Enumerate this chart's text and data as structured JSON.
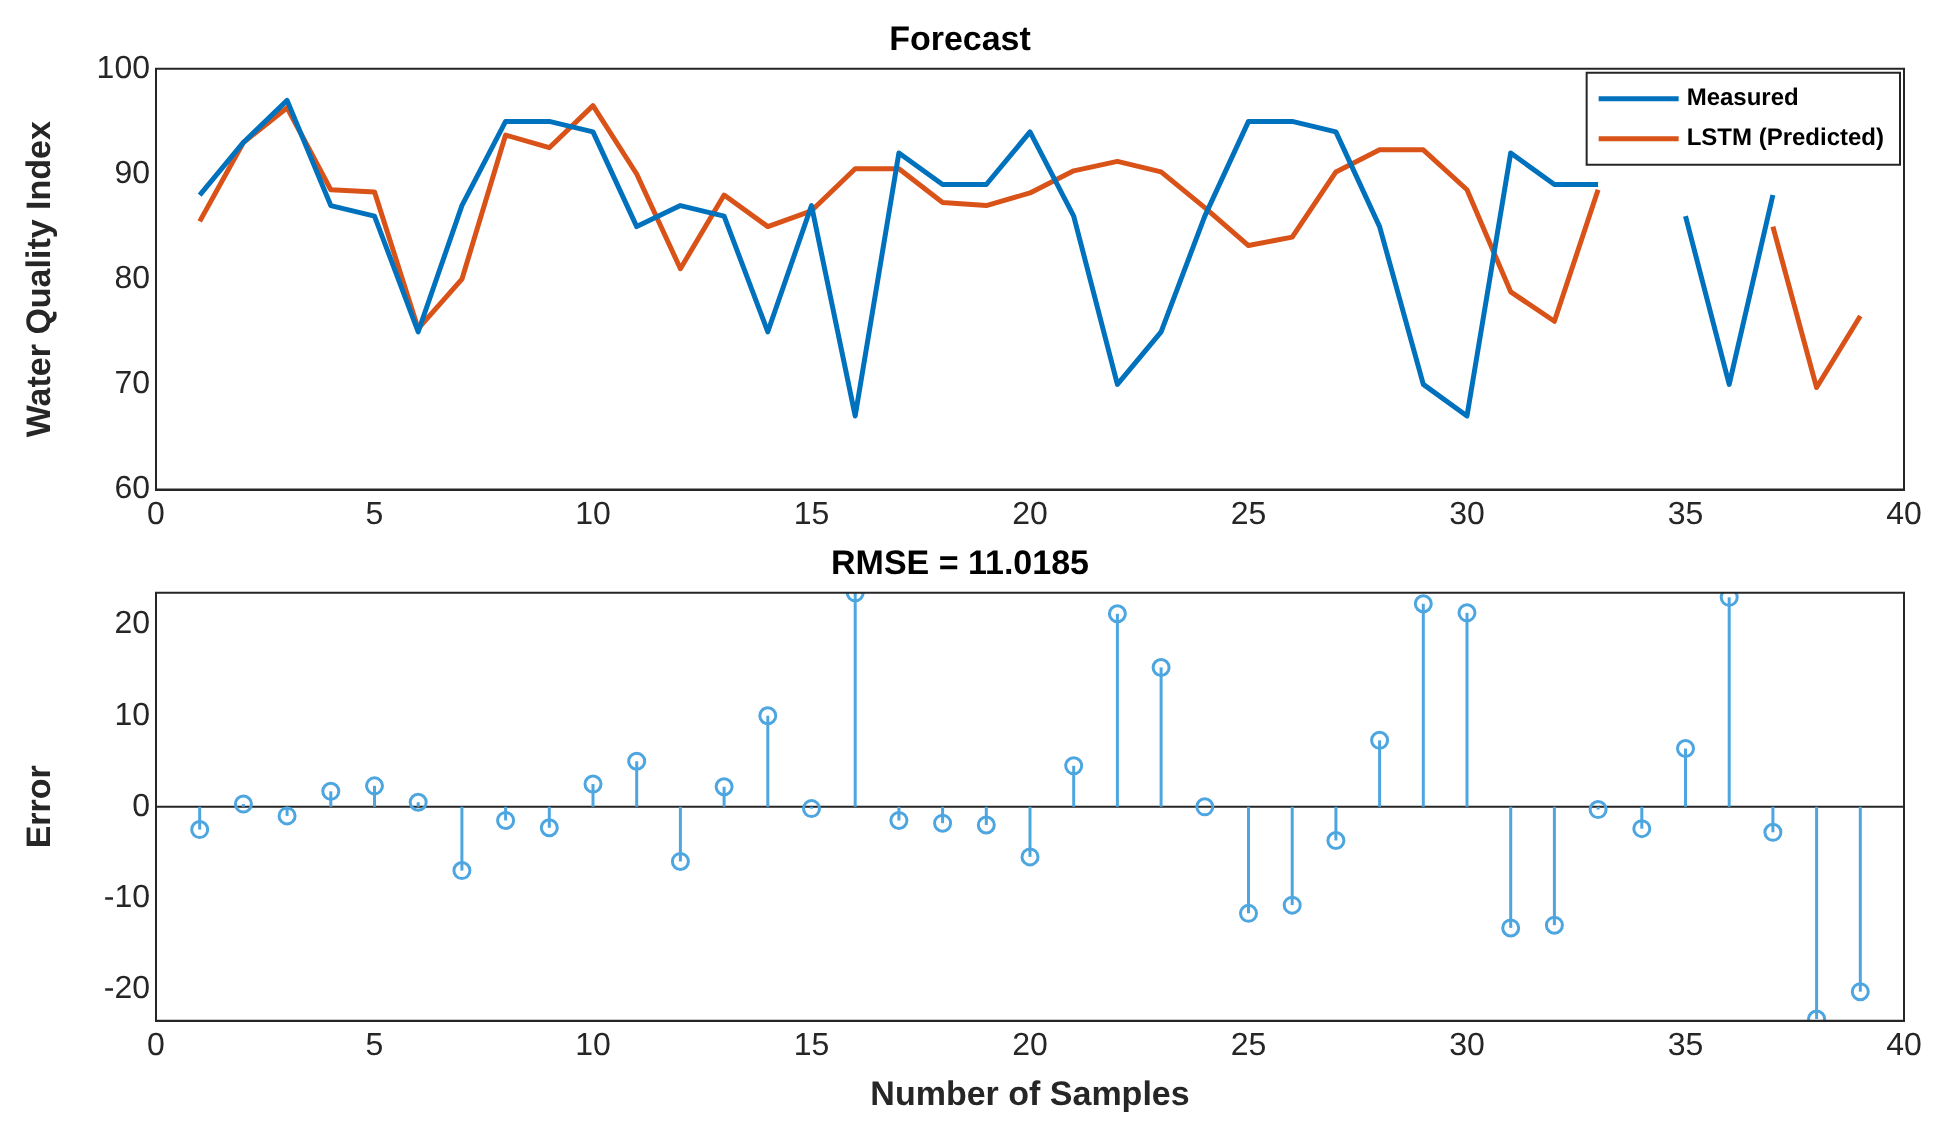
{
  "chart_data": [
    {
      "type": "line",
      "title": "Forecast",
      "ylabel": "Water Quality Index",
      "x": [
        1,
        2,
        3,
        4,
        5,
        6,
        7,
        8,
        9,
        10,
        11,
        12,
        13,
        14,
        15,
        16,
        17,
        18,
        19,
        20,
        21,
        22,
        23,
        24,
        25,
        26,
        27,
        28,
        29,
        30,
        31,
        32,
        33,
        34,
        35,
        36,
        37,
        38,
        39
      ],
      "series": [
        {
          "name": "Measured",
          "color": "#0072bd",
          "values": [
            88,
            93,
            97,
            87,
            86,
            75,
            87,
            95,
            95,
            94,
            85,
            87,
            86,
            75,
            87,
            67,
            92,
            89,
            89,
            94,
            86,
            70,
            75,
            86,
            95,
            95,
            94,
            85,
            70,
            67,
            92,
            89,
            89,
            null,
            86,
            70,
            88,
            null,
            null
          ]
        },
        {
          "name": "LSTM (Predicted)",
          "color": "#d95319",
          "values": [
            85.5,
            93,
            96.3,
            88.5,
            88.3,
            75.3,
            80,
            93.7,
            92.5,
            96.5,
            90,
            81,
            88,
            85,
            86.5,
            90.5,
            90.5,
            87.3,
            87,
            88.2,
            90.3,
            91.2,
            90.2,
            86.8,
            83.2,
            84,
            90.2,
            92.3,
            92.3,
            88.5,
            78.8,
            76,
            88.5,
            null,
            null,
            null,
            85,
            69.7,
            76.5
          ]
        }
      ],
      "xlim": [
        0,
        40
      ],
      "xticks": [
        0,
        5,
        10,
        15,
        20,
        25,
        30,
        35,
        40
      ],
      "ylim": [
        60,
        100
      ],
      "yticks": [
        60,
        70,
        80,
        90,
        100
      ],
      "grid": false,
      "legend": "top right",
      "marker": "none",
      "line_style": "solid"
    },
    {
      "type": "lollipop",
      "title": "RMSE = 11.0185",
      "xlabel": "Number of Samples",
      "ylabel": "Error",
      "x": [
        1,
        2,
        3,
        4,
        5,
        6,
        7,
        8,
        9,
        10,
        11,
        12,
        13,
        14,
        15,
        16,
        17,
        18,
        19,
        20,
        21,
        22,
        23,
        24,
        25,
        26,
        27,
        28,
        29,
        30,
        31,
        32,
        33,
        34,
        35,
        36,
        37,
        38,
        39
      ],
      "values": [
        -2.5,
        0.3,
        -1,
        1.7,
        2.3,
        0.5,
        -7,
        -1.5,
        -2.3,
        2.5,
        5,
        -6,
        2.2,
        10,
        -0.2,
        23.5,
        -1.5,
        -1.8,
        -2,
        -5.5,
        4.5,
        21.2,
        15.3,
        0,
        -11.7,
        -10.8,
        -3.7,
        7.3,
        22.3,
        21.3,
        -13.3,
        -13,
        -0.3,
        -2.4,
        6.4,
        23,
        -2.8,
        -23.3,
        -20.3
      ],
      "color": "#4da6e0",
      "ref_lines": [
        {
          "axis": "y",
          "value": 0,
          "color": "#262626"
        }
      ],
      "xlim": [
        0,
        40
      ],
      "xticks": [
        0,
        5,
        10,
        15,
        20,
        25,
        30,
        35,
        40
      ],
      "ylim": [
        -23.5,
        23.5
      ],
      "yticks": [
        -20,
        -10,
        0,
        10,
        20
      ],
      "grid": false,
      "legend": false,
      "marker": "circle"
    }
  ]
}
